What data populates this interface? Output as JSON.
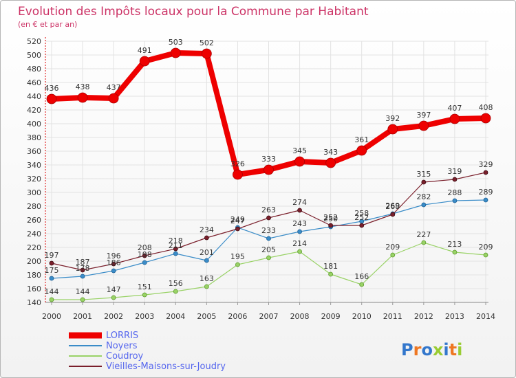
{
  "title": "Evolution des Impôts locaux pour la Commune par Habitant",
  "subtitle": "(en € et par an)",
  "logo": {
    "text": "Proxiti",
    "letter_colors": [
      "#3377cc",
      "#ee7722",
      "#3377cc",
      "#99cc33",
      "#3377cc",
      "#ee7722",
      "#99cc33"
    ]
  },
  "chart_data": {
    "type": "line",
    "title": "Evolution des Impôts locaux pour la Commune par Habitant",
    "subtitle": "(en € et par an)",
    "xlabel": "",
    "ylabel": "",
    "x": [
      "2000",
      "2001",
      "2002",
      "2003",
      "2004",
      "2005",
      "2006",
      "2007",
      "2008",
      "2009",
      "2010",
      "2011",
      "2012",
      "2013",
      "2014"
    ],
    "ylim": [
      140,
      520
    ],
    "yticks": [
      140,
      160,
      180,
      200,
      220,
      240,
      260,
      280,
      300,
      320,
      340,
      360,
      380,
      400,
      420,
      440,
      460,
      480,
      500,
      520
    ],
    "grid": true,
    "legend_position": "bottom-left",
    "series": [
      {
        "name": "LORRIS",
        "color": "#ee0000",
        "values": [
          436,
          438,
          437,
          491,
          503,
          502,
          326,
          333,
          345,
          343,
          361,
          392,
          397,
          407,
          408
        ]
      },
      {
        "name": "Noyers",
        "color": "#3a8cc8",
        "values": [
          175,
          178,
          186,
          198,
          211,
          201,
          249,
          233,
          243,
          250,
          258,
          269,
          282,
          288,
          289
        ]
      },
      {
        "name": "Coudroy",
        "color": "#99d266",
        "values": [
          144,
          144,
          147,
          151,
          156,
          163,
          195,
          205,
          214,
          181,
          166,
          209,
          227,
          213,
          209
        ]
      },
      {
        "name": "Vieilles-Maisons-sur-Joudry",
        "color": "#7a1f2b",
        "values": [
          197,
          187,
          196,
          208,
          218,
          234,
          247,
          263,
          274,
          252,
          252,
          268,
          315,
          319,
          329
        ]
      }
    ]
  }
}
